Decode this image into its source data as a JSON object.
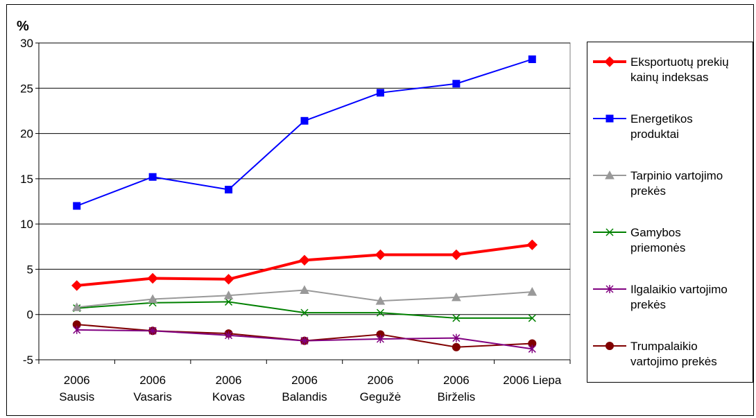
{
  "chart_data": {
    "type": "line",
    "ylabel": "%",
    "ylim": [
      -5,
      30
    ],
    "yticks": [
      "-5",
      "0",
      "5",
      "10",
      "15",
      "20",
      "25",
      "30"
    ],
    "grid": "horizontal",
    "legend_position": "right",
    "categories": [
      "2006\nSausis",
      "2006\nVasaris",
      "2006\nKovas",
      "2006\nBalandis",
      "2006\nGegužė",
      "2006\nBirželis",
      "2006 Liepa"
    ],
    "series": [
      {
        "name": "Eksportuotų prekių\nkainų indeksas",
        "color": "#ff0000",
        "marker": "diamond",
        "values": [
          3.2,
          4.0,
          3.9,
          6.0,
          6.6,
          6.6,
          7.7
        ]
      },
      {
        "name": "Energetikos\nproduktai",
        "color": "#0000ff",
        "marker": "square",
        "values": [
          12.0,
          15.2,
          13.8,
          21.4,
          24.5,
          25.5,
          28.2
        ]
      },
      {
        "name": "Tarpinio vartojimo\nprekės",
        "color": "#999999",
        "marker": "triangle",
        "values": [
          0.8,
          1.7,
          2.1,
          2.7,
          1.5,
          1.9,
          2.5
        ]
      },
      {
        "name": "Gamybos\npriemonės",
        "color": "#008000",
        "marker": "x",
        "values": [
          0.7,
          1.3,
          1.4,
          0.2,
          0.2,
          -0.4,
          -0.4
        ]
      },
      {
        "name": "Ilgalaikio vartojimo\nprekės",
        "color": "#800080",
        "marker": "star",
        "values": [
          -1.7,
          -1.8,
          -2.3,
          -2.9,
          -2.7,
          -2.6,
          -3.8
        ]
      },
      {
        "name": "Trumpalaikio\nvartojimo prekės",
        "color": "#800000",
        "marker": "circle",
        "values": [
          -1.1,
          -1.8,
          -2.1,
          -2.9,
          -2.2,
          -3.6,
          -3.2
        ]
      }
    ]
  }
}
